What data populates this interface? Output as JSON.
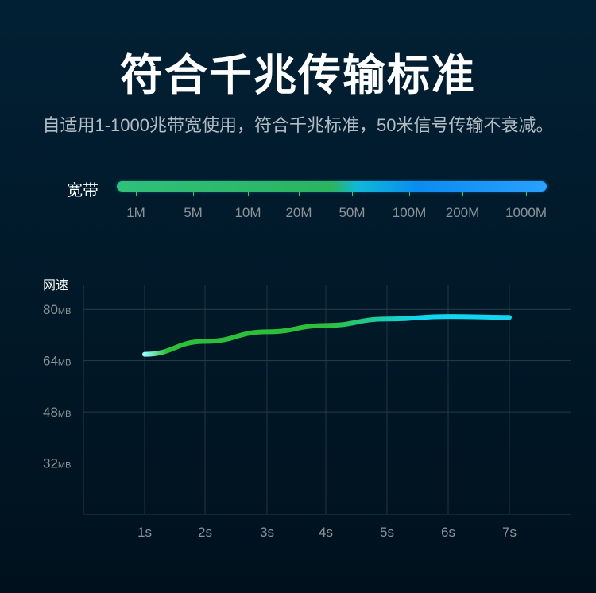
{
  "title": "符合千兆传输标准",
  "subtitle": "自适用1-1000兆带宽使用，符合千兆标准，50米信号传输不衰减。",
  "bandwidth": {
    "label": "宽带",
    "ticks": [
      "1M",
      "5M",
      "10M",
      "20M",
      "50M",
      "100M",
      "200M",
      "1000M"
    ],
    "colors": {
      "start": "#2bb45e",
      "end": "#0a8cf0"
    }
  },
  "chart_data": {
    "type": "line",
    "ylabel": "网速",
    "x": [
      "1s",
      "2s",
      "3s",
      "4s",
      "5s",
      "6s",
      "7s"
    ],
    "y_ticks": [
      {
        "value": 80,
        "num": "80",
        "unit": "MB"
      },
      {
        "value": 64,
        "num": "64",
        "unit": "MB"
      },
      {
        "value": 48,
        "num": "48",
        "unit": "MB"
      },
      {
        "value": 32,
        "num": "32",
        "unit": "MB"
      }
    ],
    "ylim": [
      16,
      96
    ],
    "grid": true,
    "series": [
      {
        "values": [
          66,
          70,
          73,
          75,
          77,
          77.8,
          77.5
        ],
        "colors": [
          "#2dbf3a",
          "#12d6f0"
        ]
      }
    ]
  }
}
